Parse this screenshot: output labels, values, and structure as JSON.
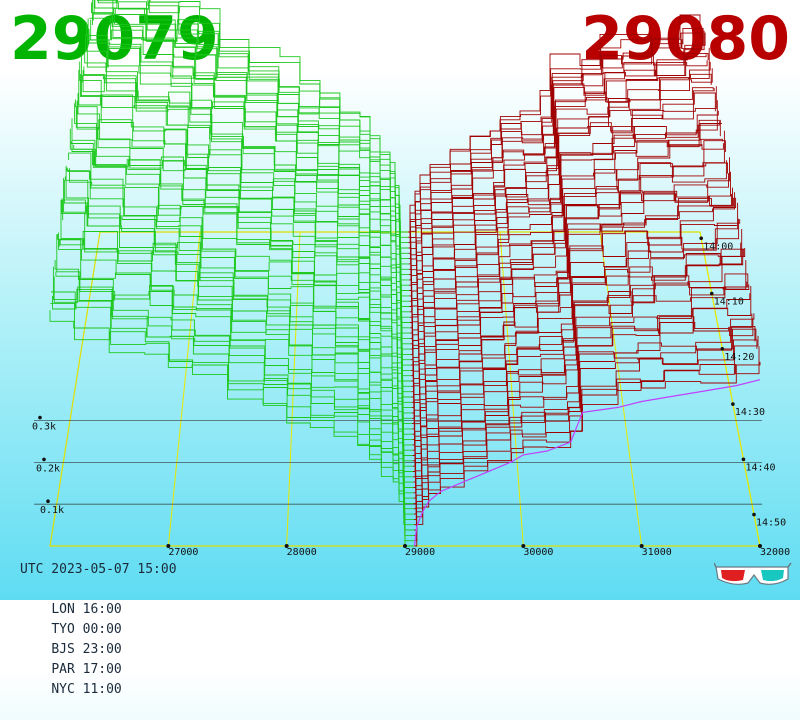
{
  "header": {
    "bid_price": "29079",
    "ask_price": "29080",
    "bid_color": "#00b400",
    "ask_color": "#b80000"
  },
  "chart_data": {
    "type": "3d-depth-waterfall",
    "title": "",
    "price_axis": {
      "ticks": [
        "27000",
        "28000",
        "29000",
        "30000",
        "31000",
        "32000"
      ],
      "tick_values": [
        27000,
        28000,
        29000,
        30000,
        31000,
        32000
      ],
      "range": [
        26000,
        32000
      ]
    },
    "volume_axis": {
      "ticks": [
        "0.1k",
        "0.2k",
        "0.3k"
      ],
      "tick_values": [
        100,
        200,
        300
      ]
    },
    "time_axis": {
      "ticks": [
        "14:00",
        "14:10",
        "14:20",
        "14:30",
        "14:40",
        "14:50"
      ]
    },
    "series": [
      {
        "side": "bid",
        "color": "#1ec81e",
        "levels": [
          29079,
          29000,
          28990,
          28950,
          28900,
          28800,
          28700,
          28600,
          28400,
          28200,
          28000,
          27800,
          27500,
          27200,
          27000,
          26800,
          26500,
          26200,
          26000
        ],
        "cumulative_volume_last_snapshot": [
          0,
          20,
          40,
          55,
          65,
          75,
          90,
          100,
          110,
          120,
          130,
          140,
          155,
          165,
          175,
          185,
          195,
          205,
          215
        ]
      },
      {
        "side": "ask",
        "color": "#a00000",
        "levels": [
          29080,
          29100,
          29150,
          29200,
          29300,
          29500,
          29700,
          29900,
          30000,
          30200,
          30400,
          30500,
          30800,
          31000,
          31200,
          31500,
          31800,
          32000
        ],
        "cumulative_volume_last_snapshot": [
          0,
          20,
          35,
          45,
          55,
          65,
          75,
          85,
          92,
          96,
          105,
          135,
          140,
          146,
          150,
          156,
          162,
          168
        ]
      }
    ]
  },
  "clock": {
    "utc": "UTC 2023-05-07 15:00",
    "cities": [
      "LON 16:00",
      "TYO 00:00",
      "BJS 23:00",
      "PAR 17:00",
      "NYC 11:00"
    ]
  }
}
